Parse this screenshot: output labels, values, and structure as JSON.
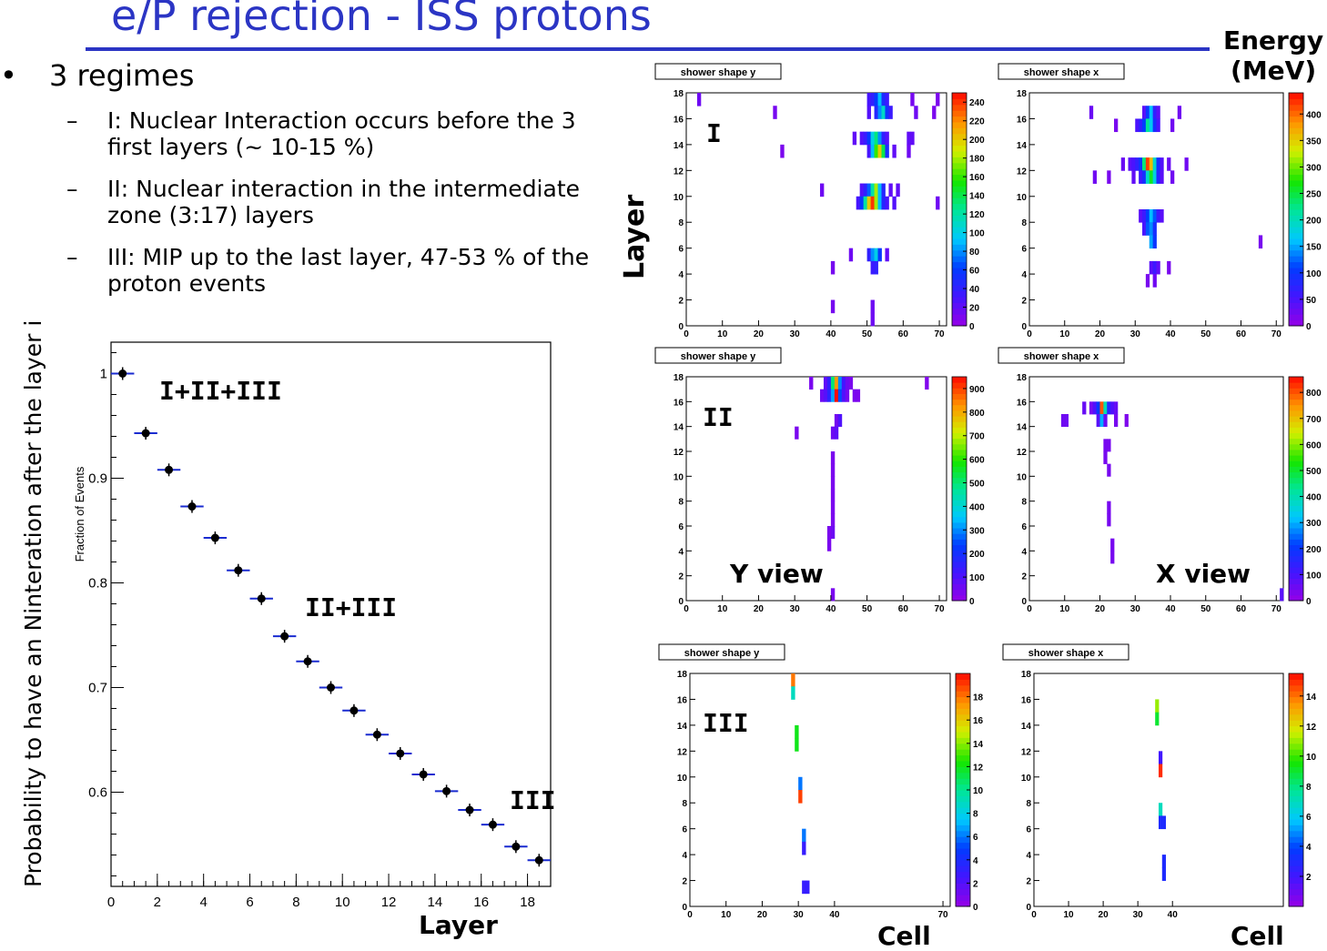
{
  "slide": {
    "title": "e/P rejection - ISS protons",
    "bullet_symbol": "•",
    "bullet": "3 regimes",
    "dash": "–",
    "sub_items": [
      "I: Nuclear Interaction occurs before the 3 first layers (~ 10-15 %)",
      "II: Nuclear interaction in the intermediate zone (3:17) layers",
      "III: MIP up to the last layer, 47-53 % of the proton events"
    ],
    "y_axis_label": "Probability to have an Ninteration after the layer i",
    "energy_label_1": "Energy",
    "energy_label_2": "(MeV)",
    "layer_label_right": "Layer",
    "layer_label_bottom": "Layer",
    "cell_label_1": "Cell",
    "cell_label_2": "Cell",
    "y_view_label": "Y view",
    "x_view_label": "X view",
    "regime_labels": {
      "all": "I+II+III",
      "mid": "II+III",
      "low": "III"
    },
    "panel_regimes": [
      "I",
      "II",
      "III"
    ]
  },
  "colors": {
    "title": "#2b35c4",
    "marker": "#000000",
    "xbar": "#1a2bd0"
  },
  "chart_data": [
    {
      "type": "scatter",
      "ylabel": "Fraction of Events",
      "xlim": [
        0,
        19
      ],
      "ylim": [
        0.51,
        1.03
      ],
      "xticks": [
        0,
        2,
        4,
        6,
        8,
        10,
        12,
        14,
        16,
        18
      ],
      "yticks": [
        0.6,
        0.7,
        0.8,
        0.9,
        1
      ],
      "x": [
        0.5,
        1.5,
        2.5,
        3.5,
        4.5,
        5.5,
        6.5,
        7.5,
        8.5,
        9.5,
        10.5,
        11.5,
        12.5,
        13.5,
        14.5,
        15.5,
        16.5,
        17.5,
        18.5
      ],
      "y": [
        1.0,
        0.943,
        0.908,
        0.873,
        0.843,
        0.812,
        0.785,
        0.749,
        0.725,
        0.7,
        0.678,
        0.655,
        0.637,
        0.617,
        0.601,
        0.583,
        0.569,
        0.548,
        0.535
      ],
      "xerr": 0.5
    },
    {
      "type": "heatmap",
      "title": "shower shape y",
      "regime": "I",
      "xlim": [
        0,
        72
      ],
      "ylim": [
        0,
        18
      ],
      "xticks": [
        0,
        10,
        20,
        30,
        40,
        50,
        60,
        70
      ],
      "yticks": [
        0,
        2,
        4,
        6,
        8,
        10,
        12,
        14,
        16,
        18
      ],
      "zmax": 250,
      "zticks": [
        0,
        20,
        40,
        60,
        80,
        100,
        120,
        140,
        160,
        180,
        200,
        220,
        240
      ],
      "cells": [
        [
          3,
          17,
          15
        ],
        [
          24,
          16,
          12
        ],
        [
          50,
          17,
          30
        ],
        [
          51,
          17,
          40
        ],
        [
          52,
          17,
          60
        ],
        [
          53,
          17,
          90
        ],
        [
          54,
          17,
          50
        ],
        [
          55,
          17,
          35
        ],
        [
          50,
          16,
          25
        ],
        [
          52,
          16,
          45
        ],
        [
          53,
          16,
          80
        ],
        [
          54,
          16,
          110
        ],
        [
          55,
          16,
          55
        ],
        [
          56,
          16,
          35
        ],
        [
          63,
          16,
          15
        ],
        [
          68,
          16,
          10
        ],
        [
          69,
          17,
          10
        ],
        [
          62,
          17,
          12
        ],
        [
          46,
          14,
          20
        ],
        [
          48,
          14,
          25
        ],
        [
          49,
          14,
          35
        ],
        [
          50,
          14,
          60
        ],
        [
          51,
          14,
          100
        ],
        [
          52,
          14,
          130
        ],
        [
          53,
          14,
          80
        ],
        [
          54,
          14,
          40
        ],
        [
          55,
          14,
          25
        ],
        [
          61,
          14,
          20
        ],
        [
          62,
          14,
          20
        ],
        [
          26,
          13,
          10
        ],
        [
          50,
          13,
          30
        ],
        [
          51,
          13,
          90
        ],
        [
          52,
          13,
          160
        ],
        [
          53,
          13,
          200
        ],
        [
          54,
          13,
          140
        ],
        [
          55,
          13,
          50
        ],
        [
          57,
          13,
          20
        ],
        [
          61,
          13,
          15
        ],
        [
          37,
          10,
          15
        ],
        [
          48,
          10,
          25
        ],
        [
          49,
          10,
          40
        ],
        [
          50,
          10,
          70
        ],
        [
          51,
          10,
          120
        ],
        [
          52,
          10,
          180
        ],
        [
          53,
          10,
          90
        ],
        [
          54,
          10,
          45
        ],
        [
          56,
          10,
          20
        ],
        [
          58,
          10,
          20
        ],
        [
          47,
          9,
          30
        ],
        [
          48,
          9,
          60
        ],
        [
          49,
          9,
          120
        ],
        [
          50,
          9,
          200
        ],
        [
          51,
          9,
          240
        ],
        [
          52,
          9,
          180
        ],
        [
          53,
          9,
          90
        ],
        [
          54,
          9,
          45
        ],
        [
          55,
          9,
          30
        ],
        [
          57,
          9,
          25
        ],
        [
          69,
          9,
          15
        ],
        [
          45,
          5,
          15
        ],
        [
          50,
          5,
          40
        ],
        [
          51,
          5,
          80
        ],
        [
          52,
          5,
          100
        ],
        [
          53,
          5,
          60
        ],
        [
          55,
          5,
          20
        ],
        [
          40,
          4,
          12
        ],
        [
          51,
          4,
          35
        ],
        [
          52,
          4,
          40
        ],
        [
          40,
          1,
          12
        ],
        [
          51,
          1,
          15
        ],
        [
          51,
          0,
          15
        ]
      ]
    },
    {
      "type": "heatmap",
      "title": "shower shape x",
      "regime": "I",
      "xlim": [
        0,
        72
      ],
      "ylim": [
        0,
        18
      ],
      "xticks": [
        0,
        10,
        20,
        30,
        40,
        50,
        60,
        70
      ],
      "yticks": [
        0,
        2,
        4,
        6,
        8,
        10,
        12,
        14,
        16,
        18
      ],
      "zmax": 440,
      "zticks": [
        0,
        50,
        100,
        150,
        200,
        250,
        300,
        350,
        400
      ],
      "cells": [
        [
          17,
          16,
          30
        ],
        [
          32,
          16,
          40
        ],
        [
          33,
          16,
          100
        ],
        [
          34,
          16,
          160
        ],
        [
          35,
          16,
          70
        ],
        [
          36,
          16,
          40
        ],
        [
          42,
          16,
          25
        ],
        [
          24,
          15,
          20
        ],
        [
          30,
          15,
          50
        ],
        [
          31,
          15,
          70
        ],
        [
          32,
          15,
          110
        ],
        [
          33,
          15,
          220
        ],
        [
          34,
          15,
          170
        ],
        [
          35,
          15,
          90
        ],
        [
          36,
          15,
          50
        ],
        [
          40,
          15,
          25
        ],
        [
          26,
          12,
          30
        ],
        [
          28,
          12,
          40
        ],
        [
          29,
          12,
          50
        ],
        [
          30,
          12,
          70
        ],
        [
          31,
          12,
          100
        ],
        [
          32,
          12,
          230
        ],
        [
          33,
          12,
          420
        ],
        [
          34,
          12,
          360
        ],
        [
          35,
          12,
          190
        ],
        [
          36,
          12,
          90
        ],
        [
          37,
          12,
          45
        ],
        [
          39,
          12,
          30
        ],
        [
          44,
          12,
          25
        ],
        [
          18,
          11,
          25
        ],
        [
          22,
          11,
          20
        ],
        [
          29,
          11,
          35
        ],
        [
          31,
          11,
          60
        ],
        [
          32,
          11,
          90
        ],
        [
          33,
          11,
          190
        ],
        [
          34,
          11,
          260
        ],
        [
          35,
          11,
          180
        ],
        [
          36,
          11,
          80
        ],
        [
          37,
          11,
          40
        ],
        [
          40,
          11,
          25
        ],
        [
          31,
          8,
          40
        ],
        [
          32,
          8,
          60
        ],
        [
          33,
          8,
          110
        ],
        [
          34,
          8,
          160
        ],
        [
          35,
          8,
          120
        ],
        [
          36,
          8,
          60
        ],
        [
          37,
          8,
          40
        ],
        [
          32,
          7,
          50
        ],
        [
          33,
          7,
          120
        ],
        [
          34,
          7,
          140
        ],
        [
          35,
          7,
          90
        ],
        [
          65,
          6,
          20
        ],
        [
          34,
          6,
          150
        ],
        [
          35,
          6,
          100
        ],
        [
          34,
          4,
          40
        ],
        [
          35,
          4,
          60
        ],
        [
          36,
          4,
          35
        ],
        [
          39,
          4,
          20
        ],
        [
          33,
          3,
          20
        ],
        [
          35,
          3,
          25
        ]
      ]
    },
    {
      "type": "heatmap",
      "title": "shower shape y",
      "regime": "II",
      "xlim": [
        0,
        72
      ],
      "ylim": [
        0,
        18
      ],
      "xticks": [
        0,
        10,
        20,
        30,
        40,
        50,
        60,
        70
      ],
      "yticks": [
        0,
        2,
        4,
        6,
        8,
        10,
        12,
        14,
        16,
        18
      ],
      "zmax": 950,
      "zticks": [
        0,
        100,
        200,
        300,
        400,
        500,
        600,
        700,
        800,
        900
      ],
      "cells": [
        [
          34,
          17,
          40
        ],
        [
          38,
          17,
          80
        ],
        [
          39,
          17,
          150
        ],
        [
          40,
          17,
          500
        ],
        [
          41,
          17,
          820
        ],
        [
          42,
          17,
          300
        ],
        [
          43,
          17,
          120
        ],
        [
          44,
          17,
          60
        ],
        [
          45,
          17,
          40
        ],
        [
          66,
          17,
          30
        ],
        [
          37,
          16,
          60
        ],
        [
          38,
          16,
          90
        ],
        [
          39,
          16,
          160
        ],
        [
          40,
          16,
          320
        ],
        [
          41,
          16,
          950
        ],
        [
          42,
          16,
          250
        ],
        [
          43,
          16,
          100
        ],
        [
          44,
          16,
          50
        ],
        [
          46,
          16,
          40
        ],
        [
          47,
          16,
          35
        ],
        [
          41,
          14,
          50
        ],
        [
          42,
          14,
          100
        ],
        [
          30,
          13,
          40
        ],
        [
          40,
          13,
          60
        ],
        [
          41,
          13,
          80
        ],
        [
          40,
          11,
          40
        ],
        [
          40,
          10,
          40
        ],
        [
          40,
          9,
          40
        ],
        [
          40,
          8,
          40
        ],
        [
          40,
          7,
          40
        ],
        [
          40,
          6,
          40
        ],
        [
          40,
          5,
          60
        ],
        [
          39,
          5,
          40
        ],
        [
          39,
          4,
          40
        ],
        [
          40,
          0,
          40
        ]
      ]
    },
    {
      "type": "heatmap",
      "title": "shower shape x",
      "regime": "II",
      "xlim": [
        0,
        72
      ],
      "ylim": [
        0,
        18
      ],
      "xticks": [
        0,
        10,
        20,
        30,
        40,
        50,
        60,
        70
      ],
      "yticks": [
        0,
        2,
        4,
        6,
        8,
        10,
        12,
        14,
        16,
        18
      ],
      "zmax": 860,
      "zticks": [
        0,
        100,
        200,
        300,
        400,
        500,
        600,
        700,
        800
      ],
      "cells": [
        [
          15,
          15,
          60
        ],
        [
          17,
          15,
          40
        ],
        [
          18,
          15,
          90
        ],
        [
          19,
          15,
          200
        ],
        [
          20,
          15,
          800
        ],
        [
          21,
          15,
          400
        ],
        [
          22,
          15,
          150
        ],
        [
          23,
          15,
          90
        ],
        [
          24,
          15,
          60
        ],
        [
          19,
          14,
          80
        ],
        [
          20,
          14,
          300
        ],
        [
          21,
          14,
          60
        ],
        [
          9,
          14,
          50
        ],
        [
          10,
          14,
          50
        ],
        [
          24,
          14,
          40
        ],
        [
          27,
          14,
          30
        ],
        [
          21,
          12,
          40
        ],
        [
          22,
          12,
          40
        ],
        [
          21,
          11,
          40
        ],
        [
          22,
          10,
          40
        ],
        [
          22,
          7,
          40
        ],
        [
          22,
          6,
          40
        ],
        [
          23,
          4,
          40
        ],
        [
          23,
          3,
          40
        ],
        [
          71,
          0,
          80
        ]
      ]
    },
    {
      "type": "heatmap",
      "title": "shower shape y",
      "regime": "III",
      "xlim": [
        0,
        72
      ],
      "ylim": [
        0,
        18
      ],
      "xticks": [
        0,
        10,
        20,
        30,
        40,
        70
      ],
      "yticks": [
        0,
        2,
        4,
        6,
        8,
        10,
        12,
        14,
        16,
        18
      ],
      "zmax": 20,
      "zticks": [
        0,
        2,
        4,
        6,
        8,
        10,
        12,
        14,
        16,
        18
      ],
      "cells": [
        [
          28,
          17,
          18
        ],
        [
          28,
          16,
          9
        ],
        [
          29,
          13,
          12
        ],
        [
          29,
          12,
          12
        ],
        [
          30,
          9,
          6
        ],
        [
          30,
          8,
          19
        ],
        [
          31,
          5,
          6
        ],
        [
          31,
          4,
          3
        ],
        [
          32,
          1,
          3
        ],
        [
          31,
          1,
          3
        ]
      ]
    },
    {
      "type": "heatmap",
      "title": "shower shape x",
      "regime": "III",
      "xlim": [
        0,
        72
      ],
      "ylim": [
        0,
        18
      ],
      "xticks": [
        0,
        10,
        20,
        30,
        40
      ],
      "yticks": [
        0,
        2,
        4,
        6,
        8,
        10,
        12,
        14,
        16,
        18
      ],
      "zmax": 15.5,
      "zticks": [
        2,
        4,
        6,
        8,
        10,
        12,
        14
      ],
      "cells": [
        [
          35,
          15,
          11
        ],
        [
          35,
          14,
          9
        ],
        [
          36,
          11,
          2
        ],
        [
          36,
          10,
          15
        ],
        [
          36,
          7,
          7
        ],
        [
          36,
          6,
          3
        ],
        [
          37,
          6,
          3
        ],
        [
          37,
          3,
          3
        ],
        [
          37,
          2,
          3
        ]
      ]
    }
  ]
}
